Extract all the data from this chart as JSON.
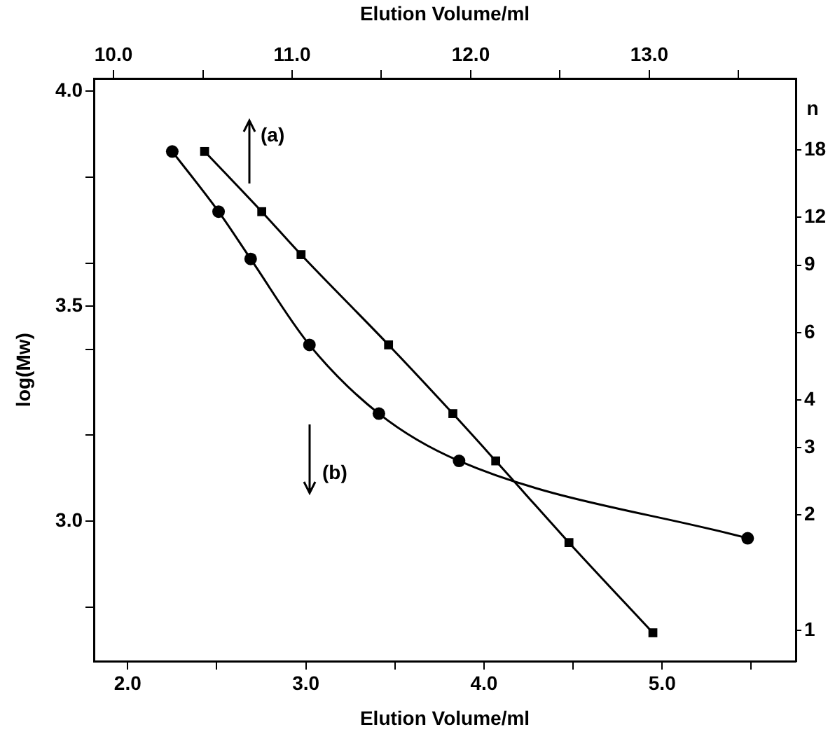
{
  "chart_data": {
    "type": "line",
    "xlabel": "Elution Volume/ml",
    "x2label": "Elution Volume/ml",
    "ylabel": "log(Mw)",
    "y2label": "n",
    "xlim": [
      1.81,
      5.75
    ],
    "xticks": [
      {
        "value": 2,
        "label": "2.0"
      },
      {
        "value": 2.5,
        "label": null
      },
      {
        "value": 3,
        "label": "3.0"
      },
      {
        "value": 3.5,
        "label": null
      },
      {
        "value": 4,
        "label": "4.0"
      },
      {
        "value": 4.5,
        "label": null
      },
      {
        "value": 5,
        "label": "5.0"
      },
      {
        "value": 5.5,
        "label": null
      }
    ],
    "x2lim": [
      9.89,
      13.82
    ],
    "x2ticks": [
      {
        "value": 10,
        "label": "10.0"
      },
      {
        "value": 10.5,
        "label": null
      },
      {
        "value": 11,
        "label": "11.0"
      },
      {
        "value": 11.5,
        "label": null
      },
      {
        "value": 12,
        "label": "12.0"
      },
      {
        "value": 12.5,
        "label": null
      },
      {
        "value": 13,
        "label": "13.0"
      },
      {
        "value": 13.5,
        "label": null
      }
    ],
    "ylim": [
      2.674,
      4.03
    ],
    "yticks": [
      {
        "value": 2.8,
        "label": null
      },
      {
        "value": 3,
        "label": "3.0"
      },
      {
        "value": 3.2,
        "label": null
      },
      {
        "value": 3.4,
        "label": null
      },
      {
        "value": 3.5,
        "label": "3.5"
      },
      {
        "value": 3.6,
        "label": null
      },
      {
        "value": 3.8,
        "label": null
      },
      {
        "value": 4,
        "label": "4.0"
      }
    ],
    "y2lim": [
      0.83,
      27.7
    ],
    "y2ticks": [
      1,
      2,
      3,
      4,
      6,
      9,
      12,
      18
    ],
    "log": "y2",
    "series": [
      {
        "color": "#000000",
        "marker": "circle",
        "x": [
          2.25,
          2.51,
          2.69,
          3.02,
          3.41,
          3.86,
          5.48
        ],
        "values": [
          3.86,
          3.72,
          3.61,
          3.41,
          3.25,
          3.14,
          2.96
        ]
      },
      {
        "color": "#000000",
        "marker": "square",
        "axis": "x2",
        "x": [
          10.51,
          10.83,
          11.05,
          11.54,
          11.9,
          12.14,
          12.55,
          13.02
        ],
        "values": [
          3.86,
          3.72,
          3.62,
          3.41,
          3.25,
          3.14,
          2.95,
          2.74
        ]
      }
    ],
    "annotations": [
      "(a)",
      "(b)"
    ],
    "grid": false,
    "legend": false
  }
}
